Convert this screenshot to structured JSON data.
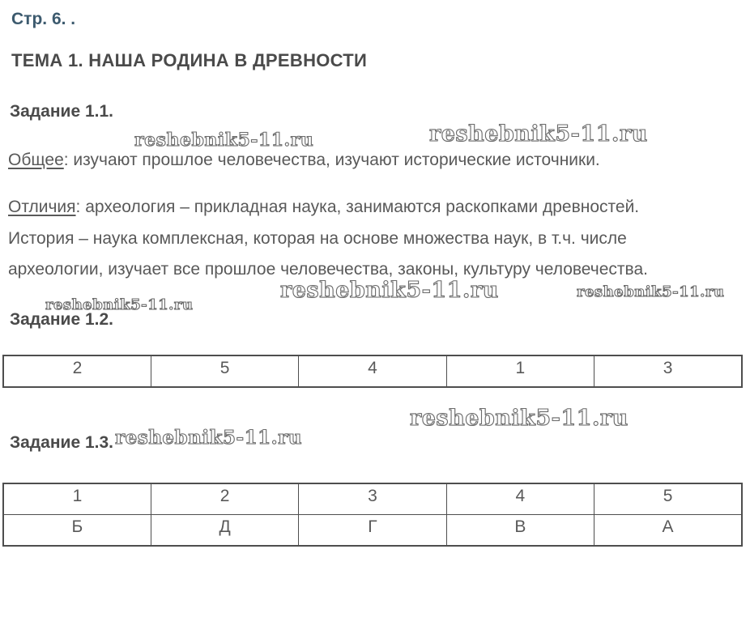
{
  "page": {
    "label": "Стр. 6. ."
  },
  "heading": "ТЕМА 1. НАША РОДИНА В ДРЕВНОСТИ",
  "watermark": {
    "text": "reshebnik5-11.ru"
  },
  "task11": {
    "title": "Задание 1.1.",
    "common": {
      "label": "Общее",
      "text": ": изучают прошлое человечества, изучают исторические источники."
    },
    "differences": {
      "label": "Отличия",
      "line1": ": археология – прикладная наука, занимаются раскопками древностей.",
      "line2": "История – наука комплексная, которая на основе множества наук, в т.ч. числе",
      "line3": "археологии, изучает все прошлое человечества, законы, культуру человечества."
    }
  },
  "task12": {
    "title": "Задание 1.2.",
    "table": {
      "rows": [
        [
          "2",
          "5",
          "4",
          "1",
          "3"
        ]
      ]
    }
  },
  "task13": {
    "title": "Задание 1.3.",
    "table": {
      "rows": [
        [
          "1",
          "2",
          "3",
          "4",
          "5"
        ],
        [
          "Б",
          "Д",
          "Г",
          "В",
          "А"
        ]
      ]
    }
  },
  "colors": {
    "page_label": "#3c5a6e",
    "heading_text": "#4a4a4a",
    "body_text": "#595959",
    "table_border": "#4e4e4e",
    "watermark_outline": "#6b6b6b"
  }
}
